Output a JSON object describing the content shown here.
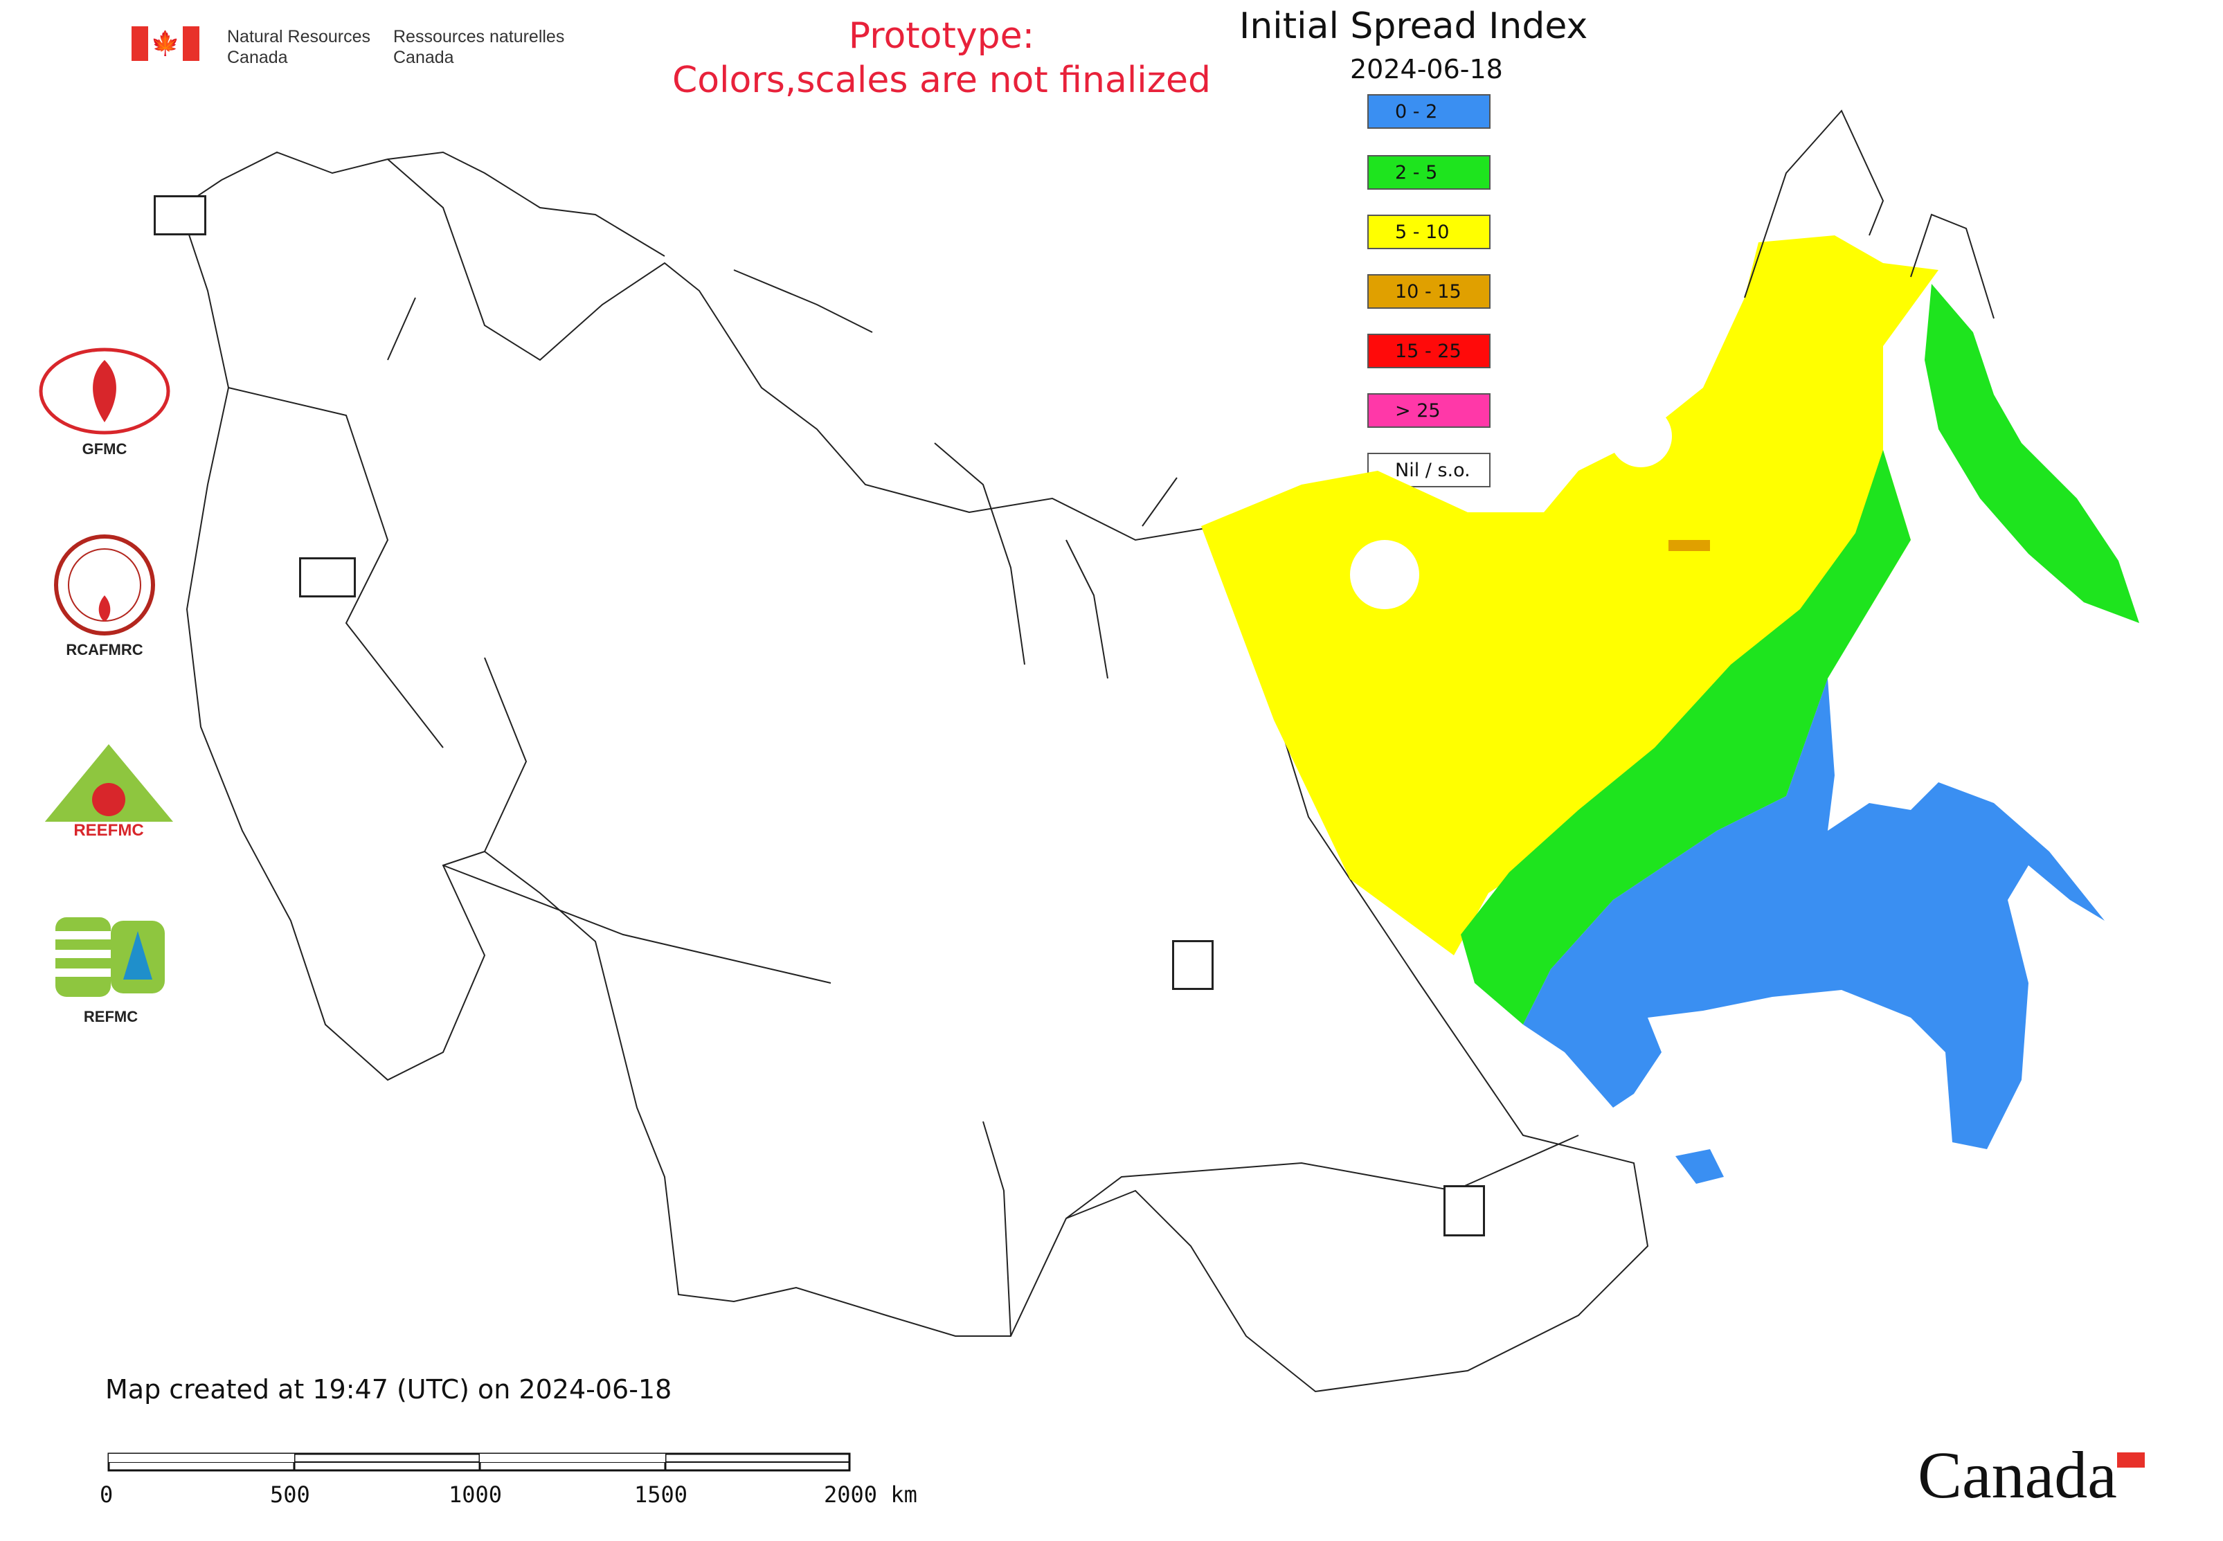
{
  "header": {
    "org_en_line1": "Natural Resources",
    "org_en_line2": "Canada",
    "org_fr_line1": "Ressources naturelles",
    "org_fr_line2": "Canada",
    "prototype_line1": "Prototype:",
    "prototype_line2": "Colors,scales are not finalized"
  },
  "map": {
    "title": "Initial Spread Index",
    "date": "2024-06-18",
    "created_text": "Map created at 19:47 (UTC) on 2024-06-18"
  },
  "legend": [
    {
      "label": "0 - 2",
      "color": "#3a8ff2"
    },
    {
      "label": "2 - 5",
      "color": "#1ee41e"
    },
    {
      "label": "5 - 10",
      "color": "#ffff00"
    },
    {
      "label": "10 - 15",
      "color": "#e0a000"
    },
    {
      "label": "15 - 25",
      "color": "#ff0a0a"
    },
    {
      "label": "> 25",
      "color": "#ff38a8"
    },
    {
      "label": "Nil / s.o.",
      "color": "#ffffff"
    }
  ],
  "logos": [
    {
      "name": "GFMC",
      "caption": "GFMC"
    },
    {
      "name": "RCAFMRC",
      "caption": "RCAFMRC"
    },
    {
      "name": "REEFMC",
      "caption": "REEFMC"
    },
    {
      "name": "REFMC",
      "caption": "REFMC"
    }
  ],
  "scale_bar": {
    "labels": [
      "0",
      "500",
      "1000",
      "1500",
      "2000 km"
    ]
  },
  "wordmark": "Canada"
}
